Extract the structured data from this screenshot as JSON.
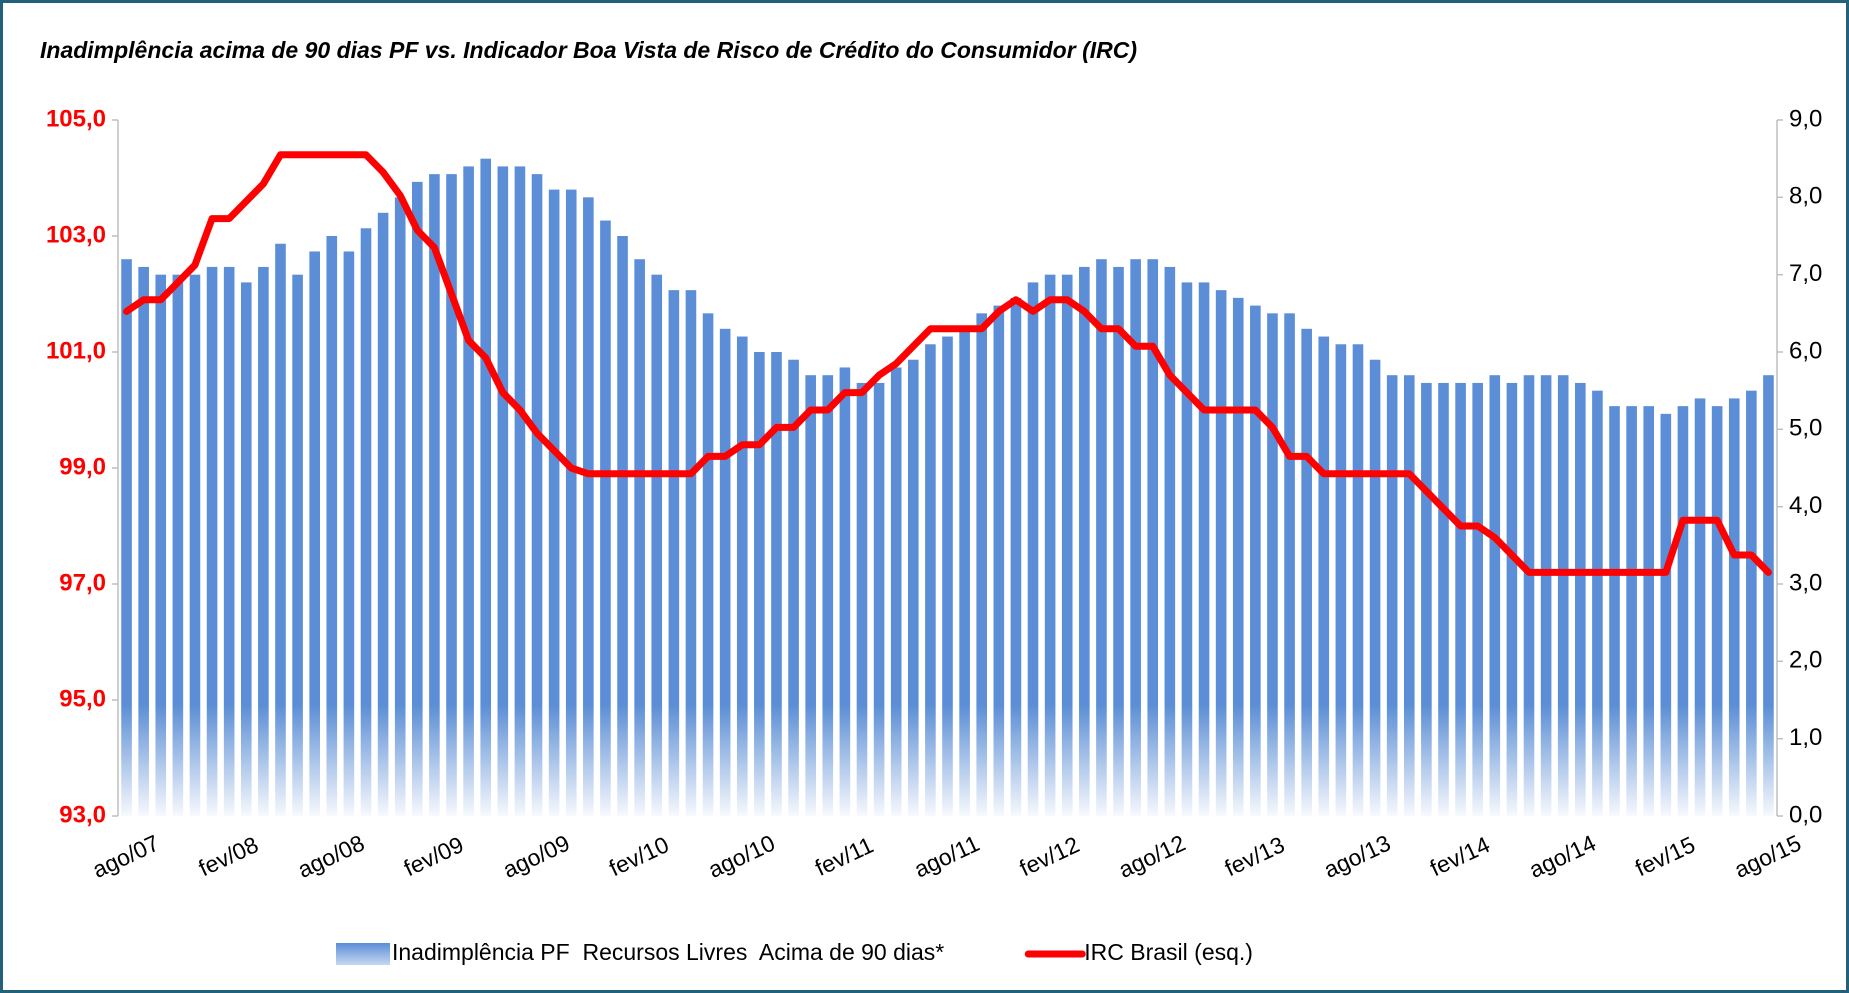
{
  "chart_data": {
    "type": "bar-line",
    "title": "Inadimplência acima de 90 dias PF vs. Indicador Boa Vista de Risco de Crédito do Consumidor (IRC)",
    "categories": [
      "ago/07",
      null,
      null,
      null,
      null,
      null,
      "fev/08",
      null,
      null,
      null,
      null,
      null,
      "ago/08",
      null,
      null,
      null,
      null,
      null,
      "fev/09",
      null,
      null,
      null,
      null,
      null,
      "ago/09",
      null,
      null,
      null,
      null,
      null,
      "fev/10",
      null,
      null,
      null,
      null,
      null,
      "ago/10",
      null,
      null,
      null,
      null,
      null,
      "fev/11",
      null,
      null,
      null,
      null,
      null,
      "ago/11",
      null,
      null,
      null,
      null,
      null,
      "fev/12",
      null,
      null,
      null,
      null,
      null,
      "ago/12",
      null,
      null,
      null,
      null,
      null,
      "fev/13",
      null,
      null,
      null,
      null,
      null,
      "ago/13",
      null,
      null,
      null,
      null,
      null,
      "fev/14",
      null,
      null,
      null,
      null,
      null,
      "ago/14",
      null,
      null,
      null,
      null,
      null,
      "fev/15",
      null,
      null,
      null,
      null,
      null,
      "ago/15"
    ],
    "series": [
      {
        "name": "Inadimplência PF  Recursos Livres  Acima de 90 dias*",
        "type": "bar",
        "axis": "y2",
        "color": "#5b8ed6",
        "values": [
          7.2,
          7.1,
          7.0,
          7.0,
          7.0,
          7.1,
          7.1,
          6.9,
          7.1,
          7.4,
          7.0,
          7.3,
          7.5,
          7.3,
          7.6,
          7.8,
          8.0,
          8.2,
          8.3,
          8.3,
          8.4,
          8.5,
          8.4,
          8.4,
          8.3,
          8.1,
          8.1,
          8.0,
          7.7,
          7.5,
          7.2,
          7.0,
          6.8,
          6.8,
          6.5,
          6.3,
          6.2,
          6.0,
          6.0,
          5.9,
          5.7,
          5.7,
          5.8,
          5.6,
          5.6,
          5.8,
          5.9,
          6.1,
          6.2,
          6.3,
          6.5,
          6.6,
          6.7,
          6.9,
          7.0,
          7.0,
          7.1,
          7.2,
          7.1,
          7.2,
          7.2,
          7.1,
          6.9,
          6.9,
          6.8,
          6.7,
          6.6,
          6.5,
          6.5,
          6.3,
          6.2,
          6.1,
          6.1,
          5.9,
          5.7,
          5.7,
          5.6,
          5.6,
          5.6,
          5.6,
          5.7,
          5.6,
          5.7,
          5.7,
          5.7,
          5.6,
          5.5,
          5.3,
          5.3,
          5.3,
          5.2,
          5.3,
          5.4,
          5.3,
          5.4,
          5.5,
          5.7
        ]
      },
      {
        "name": "IRC Brasil (esq.)",
        "type": "line",
        "color": "#ff0000",
        "values": [
          101.7,
          101.9,
          101.9,
          102.2,
          102.5,
          103.3,
          103.3,
          103.6,
          103.9,
          104.4,
          104.4,
          104.4,
          104.4,
          104.4,
          104.4,
          104.1,
          103.7,
          103.1,
          102.8,
          102.0,
          101.2,
          100.9,
          100.3,
          100.0,
          99.6,
          99.3,
          99.0,
          98.9,
          98.9,
          98.9,
          98.9,
          98.9,
          98.9,
          98.9,
          99.2,
          99.2,
          99.4,
          99.4,
          99.7,
          99.7,
          100.0,
          100.0,
          100.3,
          100.3,
          100.6,
          100.8,
          101.1,
          101.4,
          101.4,
          101.4,
          101.4,
          101.7,
          101.9,
          101.7,
          101.9,
          101.9,
          101.7,
          101.4,
          101.4,
          101.1,
          101.1,
          100.6,
          100.3,
          100.0,
          100.0,
          100.0,
          100.0,
          99.7,
          99.2,
          99.2,
          98.9,
          98.9,
          98.9,
          98.9,
          98.9,
          98.9,
          98.6,
          98.3,
          98.0,
          98.0,
          97.8,
          97.5,
          97.2,
          97.2,
          97.2,
          97.2,
          97.2,
          97.2,
          97.2,
          97.2,
          97.2,
          98.1,
          98.1,
          98.1,
          97.5,
          97.5,
          97.2
        ]
      }
    ],
    "ylim": [
      93,
      105
    ],
    "yticks": [
      {
        "value": 93,
        "label": "93,0"
      },
      {
        "value": 95,
        "label": "95,0"
      },
      {
        "value": 97,
        "label": "97,0"
      },
      {
        "value": 99,
        "label": "99,0"
      },
      {
        "value": 101,
        "label": "101,0"
      },
      {
        "value": 103,
        "label": "103,0"
      },
      {
        "value": 105,
        "label": "105,0"
      }
    ],
    "y2lim": [
      0,
      9
    ],
    "y2ticks": [
      {
        "value": 0,
        "label": "0,0"
      },
      {
        "value": 1,
        "label": "1,0"
      },
      {
        "value": 2,
        "label": "2,0"
      },
      {
        "value": 3,
        "label": "3,0"
      },
      {
        "value": 4,
        "label": "4,0"
      },
      {
        "value": 5,
        "label": "5,0"
      },
      {
        "value": 6,
        "label": "6,0"
      },
      {
        "value": 7,
        "label": "7,0"
      },
      {
        "value": 8,
        "label": "8,0"
      },
      {
        "value": 9,
        "label": "9,0"
      }
    ],
    "ytick_color": "#ff0000",
    "grid": false,
    "legend": "bottom"
  }
}
